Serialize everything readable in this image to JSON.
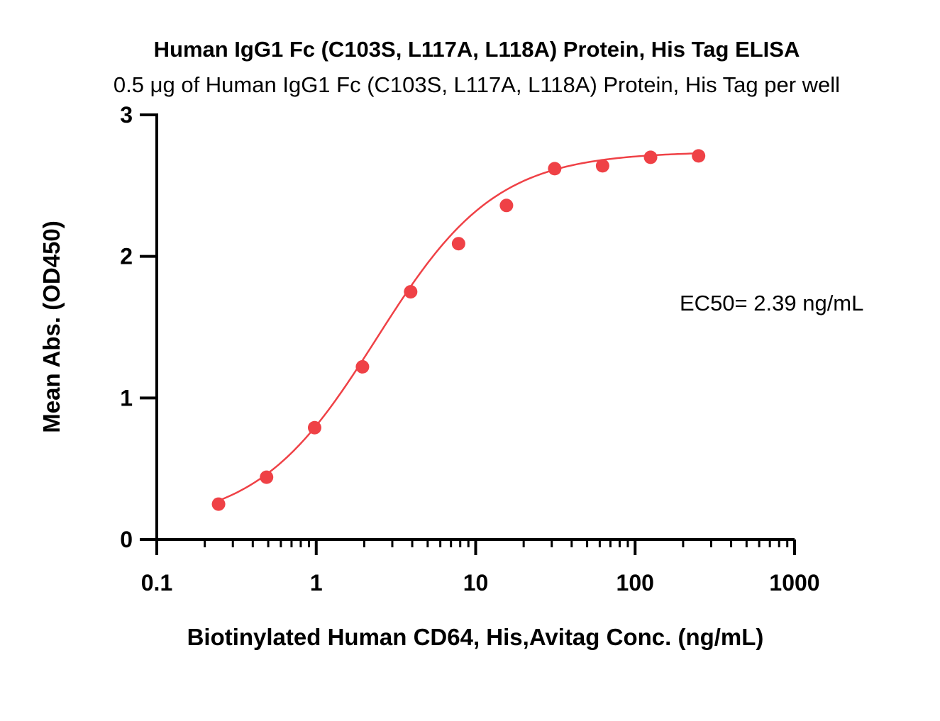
{
  "chart_data": {
    "type": "scatter",
    "title": "Human IgG1 Fc (C103S, L117A, L118A) Protein, His Tag ELISA",
    "subtitle": "0.5 μg of Human IgG1 Fc (C103S, L117A, L118A) Protein, His Tag per well",
    "xlabel": "Biotinylated Human CD64, His,Avitag Conc. (ng/mL)",
    "ylabel": "Mean Abs. (OD450)",
    "x_scale": "log",
    "xlim": [
      0.1,
      1000
    ],
    "ylim": [
      0,
      3
    ],
    "x_ticks": [
      0.1,
      1,
      10,
      100,
      1000
    ],
    "x_tick_labels": [
      "0.1",
      "1",
      "10",
      "100",
      "1000"
    ],
    "y_ticks": [
      0,
      1,
      2,
      3
    ],
    "y_tick_labels": [
      "0",
      "1",
      "2",
      "3"
    ],
    "grid": false,
    "series": [
      {
        "color": "#ef4146",
        "x": [
          0.244,
          0.488,
          0.977,
          1.95,
          3.91,
          7.81,
          15.6,
          31.3,
          62.5,
          125,
          250
        ],
        "y": [
          0.25,
          0.44,
          0.79,
          1.22,
          1.75,
          2.09,
          2.36,
          2.62,
          2.64,
          2.7,
          2.71
        ]
      }
    ],
    "fit_curve": {
      "type": "4PL",
      "color": "#ef4146",
      "bottom": 0.1,
      "top": 2.74,
      "ec50": 2.39,
      "hill": 1.16
    },
    "annotations": [
      {
        "text": "EC50= 2.39 ng/mL"
      }
    ]
  }
}
